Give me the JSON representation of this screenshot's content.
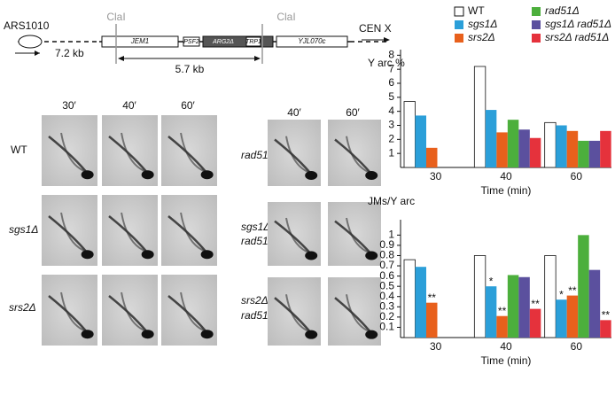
{
  "diagram": {
    "origin": "ARS1010",
    "distance_left": "7.2 kb",
    "site_left": "ClaI",
    "site_right": "ClaI",
    "centromere": "CEN X",
    "genes": [
      "JEM1",
      "PSF2",
      "ARG2Δ",
      "TRP1",
      "YJL070c"
    ],
    "fragment": "5.7 kb"
  },
  "gels": {
    "left_times": [
      "30′",
      "40′",
      "60′"
    ],
    "right_times": [
      "40′",
      "60′"
    ],
    "left_rows": [
      "WT",
      "sgs1Δ",
      "srs2Δ"
    ],
    "right_rows": [
      [
        "rad51Δ"
      ],
      [
        "sgs1Δ",
        "rad51Δ"
      ],
      [
        "srs2Δ",
        "rad51Δ"
      ]
    ]
  },
  "chart_data": [
    {
      "type": "bar",
      "ylabel": "Y arc %",
      "xlabel": "Time (min)",
      "categories": [
        "30",
        "40",
        "60"
      ],
      "ylim": [
        0,
        8.4
      ],
      "yticks": [
        1,
        2,
        3,
        4,
        5,
        6,
        7,
        8
      ],
      "series": [
        {
          "name": "WT",
          "color": "#ffffff",
          "values": [
            4.7,
            7.2,
            3.2
          ]
        },
        {
          "name": "sgs1Δ",
          "color": "#2b9fd9",
          "values": [
            3.7,
            4.1,
            3.0
          ]
        },
        {
          "name": "srs2Δ",
          "color": "#e8601c",
          "values": [
            1.4,
            2.5,
            2.6
          ]
        },
        {
          "name": "rad51Δ",
          "color": "#4caf3c",
          "values": [
            null,
            3.4,
            1.9
          ]
        },
        {
          "name": "sgs1Δ rad51Δ",
          "color": "#5b509e",
          "values": [
            null,
            2.7,
            1.9
          ]
        },
        {
          "name": "srs2Δ rad51Δ",
          "color": "#e5323c",
          "values": [
            null,
            2.1,
            2.6
          ]
        }
      ]
    },
    {
      "type": "bar",
      "ylabel": "JMs/Y arc",
      "xlabel": "Time (min)",
      "categories": [
        "30",
        "40",
        "60"
      ],
      "ylim": [
        0,
        1.15
      ],
      "yticks": [
        0.1,
        0.2,
        0.3,
        0.4,
        0.5,
        0.6,
        0.7,
        0.8,
        0.9,
        1
      ],
      "series": [
        {
          "color": "#ffffff",
          "values": [
            0.76,
            0.8,
            0.8
          ]
        },
        {
          "color": "#2b9fd9",
          "values": [
            0.69,
            0.5,
            0.37
          ],
          "significance": [
            null,
            "*",
            "*"
          ]
        },
        {
          "color": "#e8601c",
          "values": [
            0.34,
            0.21,
            0.41
          ],
          "significance": [
            "**",
            "**",
            "**"
          ]
        },
        {
          "color": "#4caf3c",
          "values": [
            null,
            0.61,
            1.0
          ]
        },
        {
          "color": "#5b509e",
          "values": [
            null,
            0.59,
            0.66
          ]
        },
        {
          "color": "#e5323c",
          "values": [
            null,
            0.28,
            0.17
          ],
          "significance": [
            null,
            "**",
            "**"
          ]
        }
      ]
    }
  ]
}
